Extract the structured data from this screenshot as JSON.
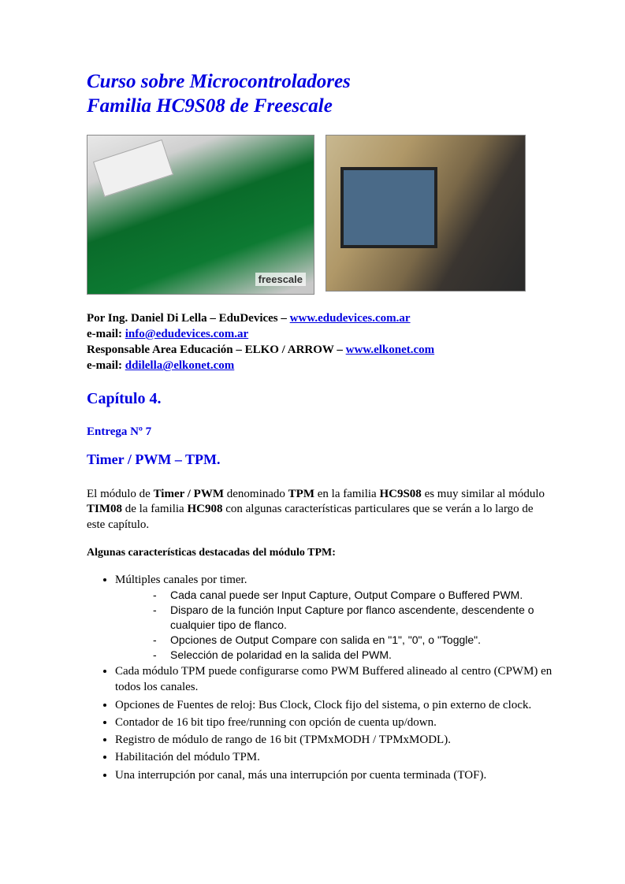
{
  "title_line1": "Curso sobre Microcontroladores",
  "title_line2": "Familia HC9S08 de Freescale",
  "images": {
    "board_alt": "Development board photo",
    "person_alt": "Instructor at computer"
  },
  "author": {
    "line1_pre": "Por Ing. Daniel Di Lella – EduDevices – ",
    "link1": "www.edudevices.com.ar",
    "line2_pre": "e-mail: ",
    "link2": "info@edudevices.com.ar",
    "line3_pre": "Responsable Area Educación – ELKO / ARROW – ",
    "link3": "www.elkonet.com",
    "line4_pre": "e-mail: ",
    "link4": "ddilella@elkonet.com"
  },
  "chapter": "Capítulo 4.",
  "delivery": "Entrega  Nº 7",
  "section": "Timer / PWM – TPM.",
  "para": {
    "seg1": "El módulo de ",
    "b1": "Timer / PWM",
    "seg2": " denominado ",
    "b2": "TPM",
    "seg3": " en la familia ",
    "b3": "HC9S08",
    "seg4": " es muy similar al módulo ",
    "b4": "TIM08",
    "seg5": " de la familia ",
    "b5": "HC908",
    "seg6": " con algunas características particulares que se verán a lo largo de este capítulo."
  },
  "subheading": "Algunas características destacadas del módulo TPM:",
  "bullets": {
    "b1": "Múltiples canales por timer.",
    "b1_sub": [
      "Cada canal puede ser Input Capture, Output Compare o Buffered PWM.",
      "Disparo de la función Input Capture por flanco ascendente, descendente o cualquier tipo de flanco.",
      "Opciones de Output Compare con salida en \"1\", \"0\", o \"Toggle\".",
      "Selección de polaridad en la salida del PWM."
    ],
    "b2": " Cada módulo TPM puede configurarse como PWM Buffered alineado al centro (CPWM) en todos los canales.",
    "b3": "Opciones de Fuentes de reloj: Bus Clock, Clock fijo del sistema, o pin externo de clock.",
    "b4": "Contador de 16 bit tipo free/running con opción de cuenta up/down.",
    "b5": "Registro de módulo de rango de 16 bit (TPMxMODH / TPMxMODL).",
    "b6": "Habilitación del módulo TPM.",
    "b7": "Una interrupción por canal, más una interrupción por cuenta terminada (TOF)."
  },
  "colors": {
    "link_blue": "#0000e0",
    "text_black": "#000000",
    "background": "#ffffff"
  }
}
